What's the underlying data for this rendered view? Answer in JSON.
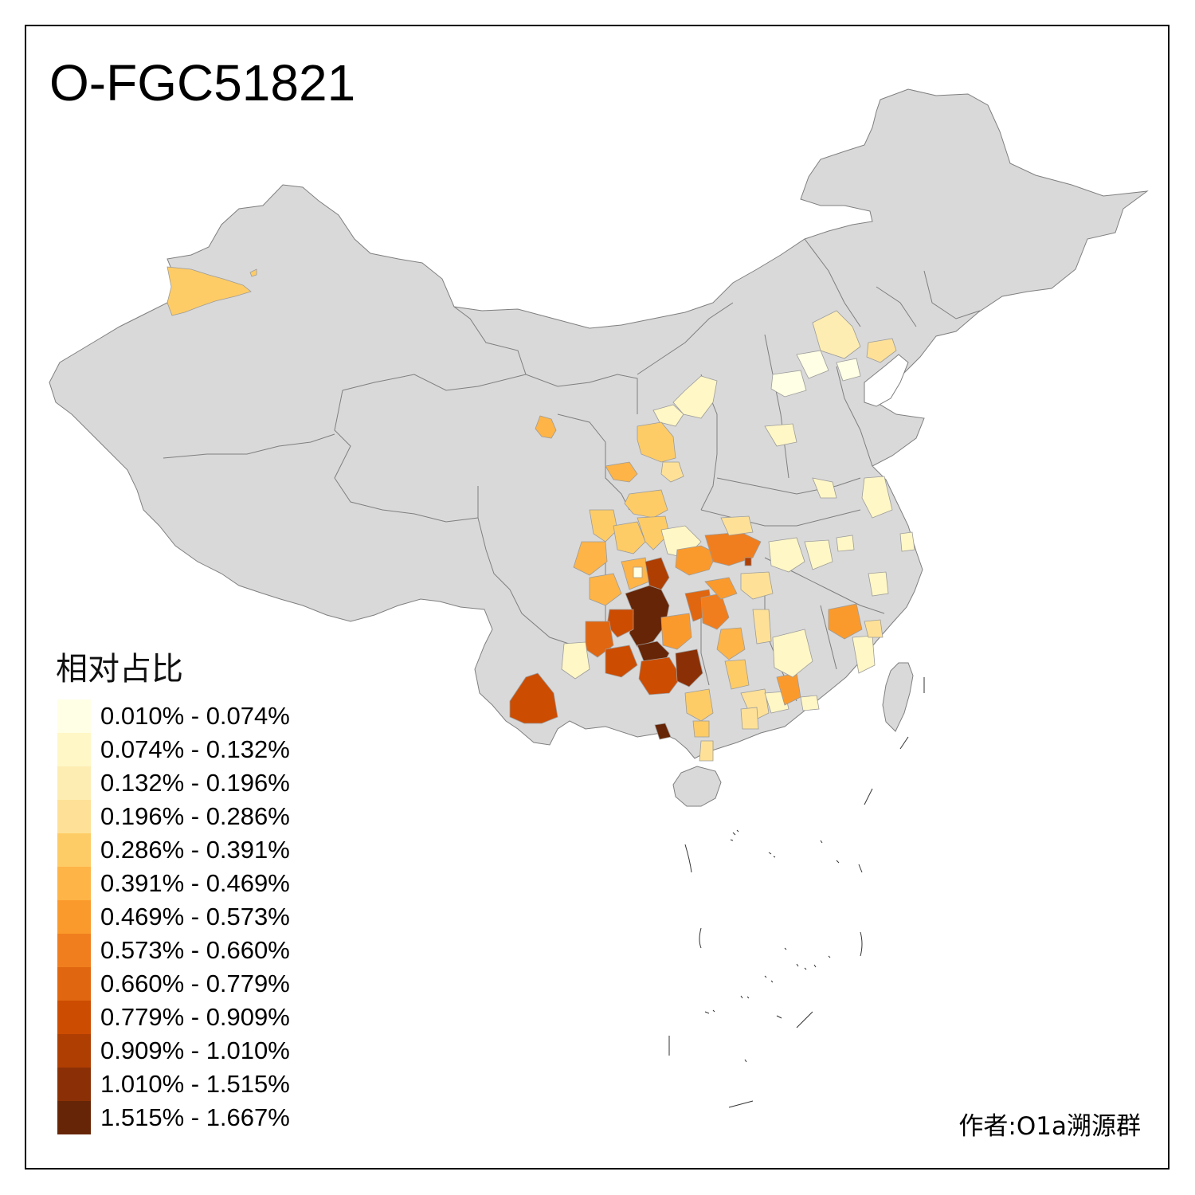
{
  "title": "O-FGC51821",
  "legend": {
    "title": "相对占比",
    "items": [
      {
        "label": "0.010% - 0.074%",
        "color": "#FFFFE5"
      },
      {
        "label": "0.074% - 0.132%",
        "color": "#FFF7C6"
      },
      {
        "label": "0.132% - 0.196%",
        "color": "#FEEDB2"
      },
      {
        "label": "0.196% - 0.286%",
        "color": "#FEE197"
      },
      {
        "label": "0.286% - 0.391%",
        "color": "#FECC66"
      },
      {
        "label": "0.391% - 0.469%",
        "color": "#FEB447"
      },
      {
        "label": "0.469% - 0.573%",
        "color": "#FB9A2C"
      },
      {
        "label": "0.573% - 0.660%",
        "color": "#F07E1E"
      },
      {
        "label": "0.660% - 0.779%",
        "color": "#E06610"
      },
      {
        "label": "0.779% - 0.909%",
        "color": "#CC4C02"
      },
      {
        "label": "0.909% - 1.010%",
        "color": "#AF3E03"
      },
      {
        "label": "1.010% - 1.515%",
        "color": "#8B3006"
      },
      {
        "label": "1.515% - 1.667%",
        "color": "#662506"
      }
    ]
  },
  "author": "作者:O1a溯源群",
  "colors": {
    "base_fill": "#D9D9D9",
    "border": "#7F7F7F",
    "frame": "#000000"
  }
}
